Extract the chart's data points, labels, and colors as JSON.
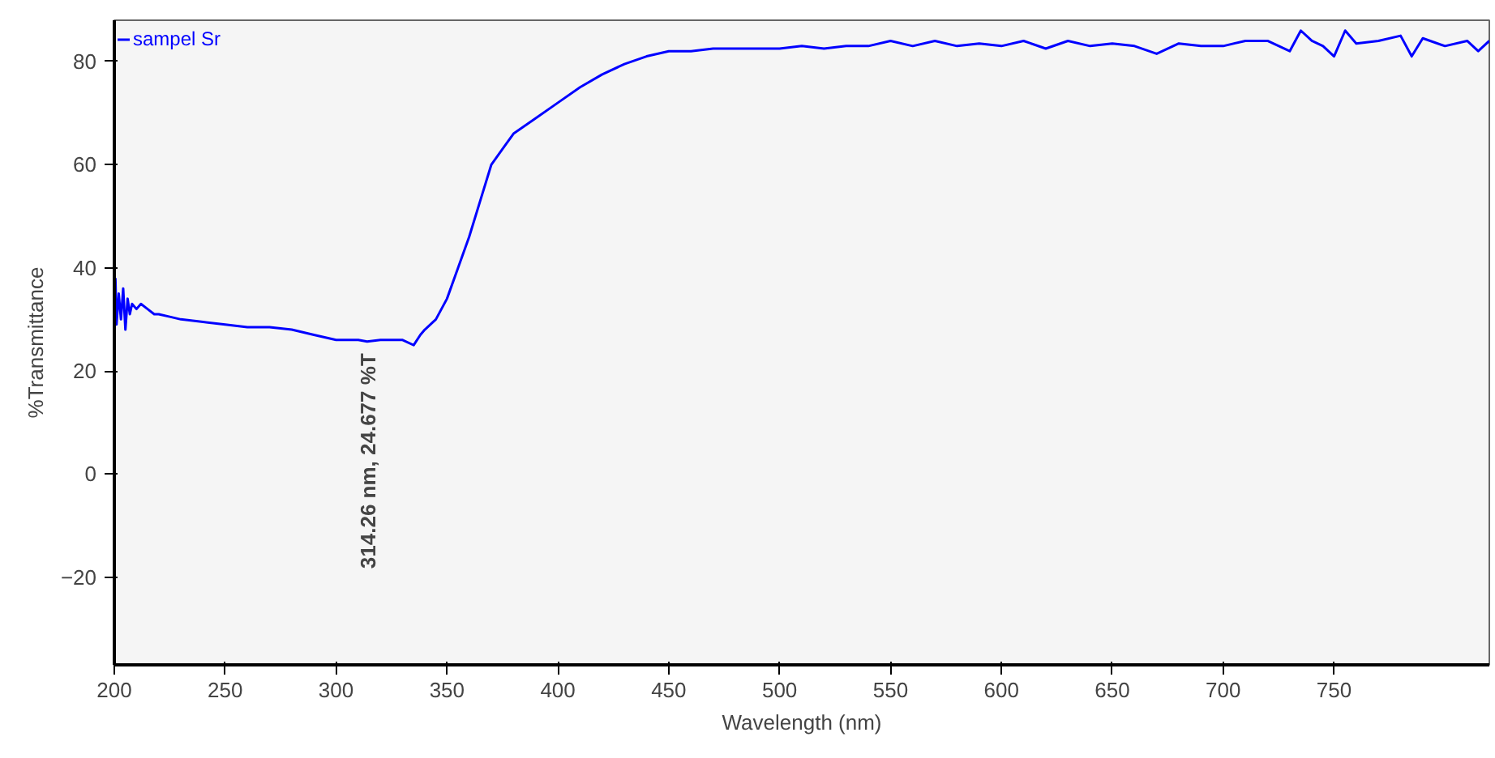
{
  "chart_data": {
    "type": "line",
    "xlabel": "Wavelength (nm)",
    "ylabel": "%Transmittance",
    "xlim": [
      200,
      820
    ],
    "ylim": [
      -37,
      88
    ],
    "xticks": [
      200,
      250,
      300,
      350,
      400,
      450,
      500,
      550,
      600,
      650,
      700,
      750
    ],
    "yticks": [
      -20,
      0,
      20,
      40,
      60,
      80
    ],
    "grid": false,
    "legend": "top left",
    "marker": "none",
    "line_style": "solid",
    "series": [
      {
        "name": "sampel Sr",
        "color": "#0000ff",
        "x": [
          200.5,
          201,
          202,
          203,
          204,
          205,
          206,
          207,
          208,
          210,
          212,
          215,
          218,
          220,
          225,
          230,
          240,
          250,
          260,
          270,
          280,
          290,
          300,
          310,
          314,
          320,
          330,
          335,
          338,
          340,
          345,
          350,
          355,
          360,
          365,
          370,
          375,
          380,
          390,
          400,
          410,
          420,
          430,
          440,
          450,
          460,
          470,
          480,
          490,
          500,
          510,
          520,
          530,
          540,
          550,
          560,
          570,
          580,
          590,
          600,
          610,
          620,
          630,
          640,
          650,
          660,
          670,
          680,
          690,
          700,
          710,
          720,
          730,
          735,
          740,
          745,
          750,
          755,
          760,
          770,
          780,
          785,
          790,
          800,
          810,
          815,
          820
        ],
        "values": [
          38,
          29,
          35,
          30,
          36,
          28,
          34,
          31,
          33,
          32,
          33,
          32,
          31,
          31,
          30.5,
          30,
          29.5,
          29,
          28.5,
          28.5,
          28,
          27,
          26,
          26,
          25.7,
          26,
          26,
          25,
          27,
          28,
          30,
          34,
          40,
          46,
          53,
          60,
          63,
          66,
          69,
          72,
          75,
          77.5,
          79.5,
          81,
          82,
          82,
          82.5,
          82.5,
          82.5,
          82.5,
          83,
          82.5,
          83,
          83,
          84,
          83,
          84,
          83,
          83.5,
          83,
          84,
          82.5,
          84,
          83,
          83.5,
          83,
          81.5,
          83.5,
          83,
          83,
          84,
          84,
          82,
          86,
          84,
          83,
          81,
          86,
          83.5,
          84,
          85,
          81,
          84.5,
          83,
          84,
          82,
          84
        ]
      }
    ],
    "annotations": [
      {
        "text": "314.26 nm, 24.677 %T",
        "x": 314.26,
        "y": 24.677
      }
    ]
  }
}
